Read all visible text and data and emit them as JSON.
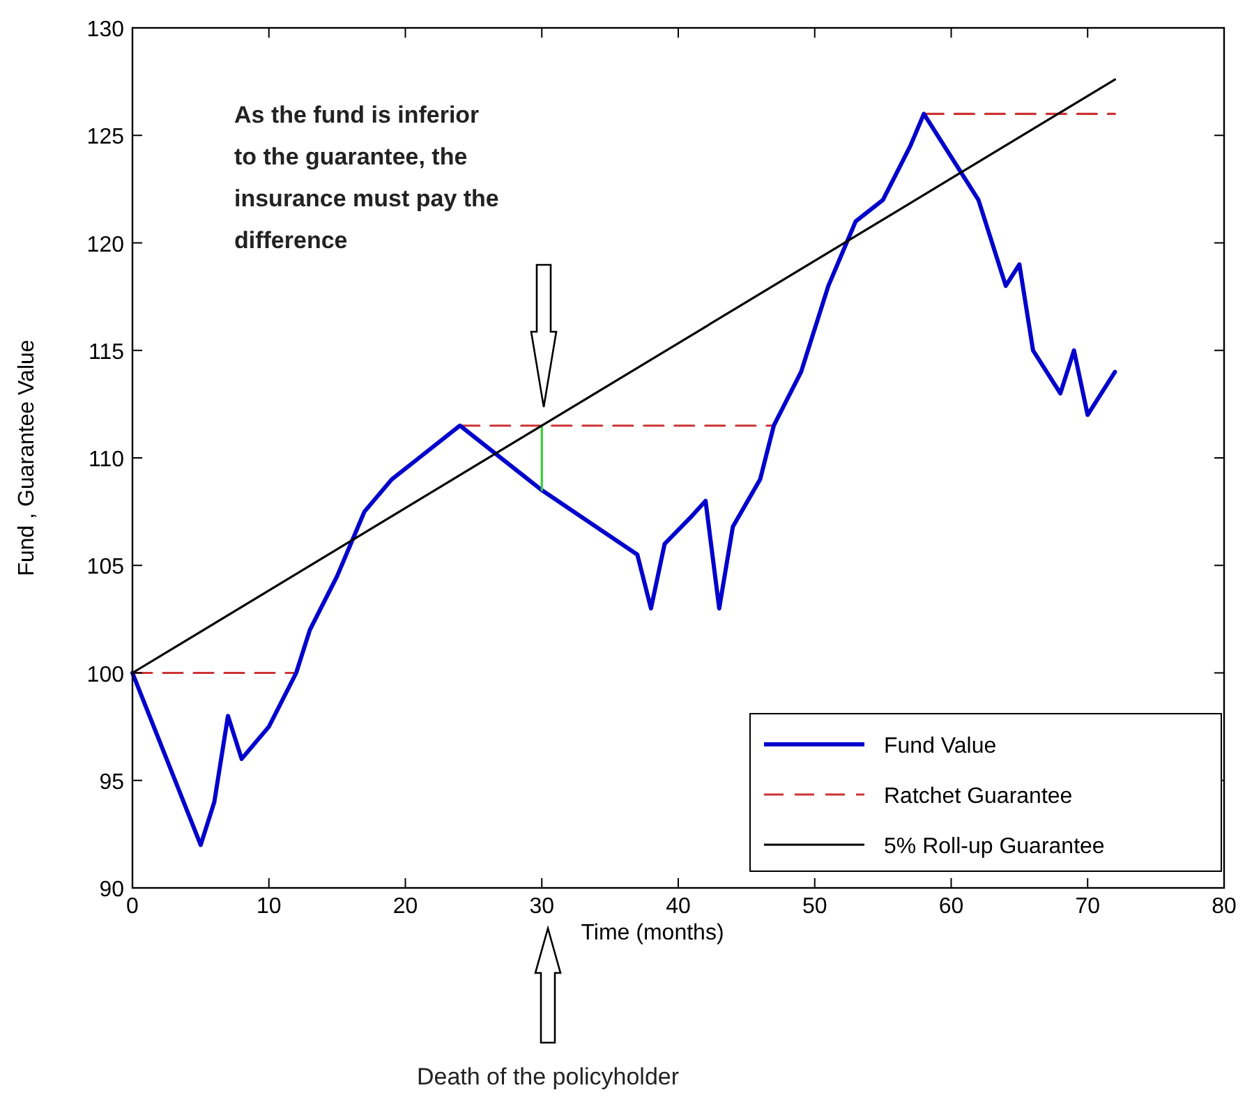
{
  "chart_data": {
    "type": "line",
    "xlabel": "Time (months)",
    "ylabel": "Fund , Guarantee Value",
    "xlim": [
      0,
      80
    ],
    "ylim": [
      90,
      130
    ],
    "xticks": [
      0,
      10,
      20,
      30,
      40,
      50,
      60,
      70,
      80
    ],
    "yticks": [
      90,
      95,
      100,
      105,
      110,
      115,
      120,
      125,
      130
    ],
    "legend": "bottom right",
    "grid": false,
    "series": [
      {
        "name": "Fund Value",
        "color": "#0000cc",
        "line_style": "solid",
        "x": [
          0,
          5,
          6,
          7,
          8,
          10,
          12,
          13,
          15,
          16,
          17,
          19,
          21,
          24,
          30,
          37,
          38,
          39,
          41,
          42,
          43,
          44,
          46,
          47,
          49,
          50,
          51,
          53,
          55,
          57,
          58,
          60,
          62,
          64,
          65,
          66,
          68,
          69,
          70,
          72
        ],
        "values": [
          100,
          92,
          94,
          98,
          96,
          97.5,
          100,
          102,
          104.5,
          106,
          107.5,
          109,
          110,
          111.5,
          108.5,
          105.5,
          103,
          106,
          107.3,
          108,
          103,
          106.8,
          109,
          111.5,
          114,
          116,
          118,
          121,
          122,
          124.5,
          126,
          124,
          122,
          118,
          119,
          115,
          113,
          115,
          112,
          114
        ]
      },
      {
        "name": "Ratchet Guarantee",
        "color": "#cc3333",
        "line_style": "dashed",
        "x": [
          0,
          12,
          18,
          24,
          47,
          52,
          58,
          72
        ],
        "values": [
          100,
          100,
          null,
          111.5,
          111.5,
          null,
          126,
          126
        ]
      },
      {
        "name": "5% Roll-up Guarantee",
        "color": "#000000",
        "line_style": "solid",
        "x": [
          0,
          72
        ],
        "values": [
          100,
          127.6
        ]
      },
      {
        "color": "#33cc33",
        "line_style": "solid",
        "x": [
          30,
          30
        ],
        "values": [
          108.5,
          111.5
        ]
      }
    ],
    "annotations": [
      "As the fund is inferior to the guarantee, the insurance must pay the difference",
      "Death of the policyholder"
    ]
  }
}
